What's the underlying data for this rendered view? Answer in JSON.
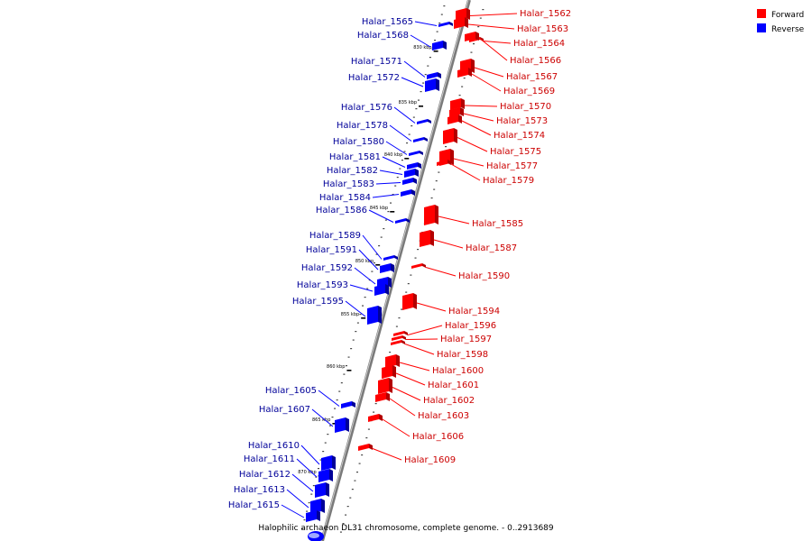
{
  "title": "Halophilic archaeon DL31 chromosome, complete genome. - 0..2913689",
  "legend": {
    "forward_label": "Forward",
    "reverse_label": "Reverse",
    "forward_color": "#ff0000",
    "reverse_color": "#0000ff"
  },
  "axis": {
    "unit": "kbp",
    "ticks": [
      "830 kbp",
      "835 kbp",
      "840 kbp",
      "845 kbp",
      "850 kbp",
      "855 kbp",
      "860 kbp",
      "865 kbp",
      "870 kbp"
    ]
  },
  "genes_forward": [
    "Halar_1562",
    "Halar_1563",
    "Halar_1564",
    "Halar_1566",
    "Halar_1567",
    "Halar_1569",
    "Halar_1570",
    "Halar_1573",
    "Halar_1574",
    "Halar_1575",
    "Halar_1577",
    "Halar_1579",
    "Halar_1585",
    "Halar_1587",
    "Halar_1590",
    "Halar_1594",
    "Halar_1596",
    "Halar_1597",
    "Halar_1598",
    "Halar_1600",
    "Halar_1601",
    "Halar_1602",
    "Halar_1603",
    "Halar_1606",
    "Halar_1609"
  ],
  "genes_reverse": [
    "Halar_1565",
    "Halar_1568",
    "Halar_1571",
    "Halar_1572",
    "Halar_1576",
    "Halar_1578",
    "Halar_1580",
    "Halar_1581",
    "Halar_1582",
    "Halar_1583",
    "Halar_1584",
    "Halar_1586",
    "Halar_1589",
    "Halar_1591",
    "Halar_1592",
    "Halar_1593",
    "Halar_1595",
    "Halar_1605",
    "Halar_1607",
    "Halar_1610",
    "Halar_1611",
    "Halar_1612",
    "Halar_1613",
    "Halar_1615"
  ]
}
